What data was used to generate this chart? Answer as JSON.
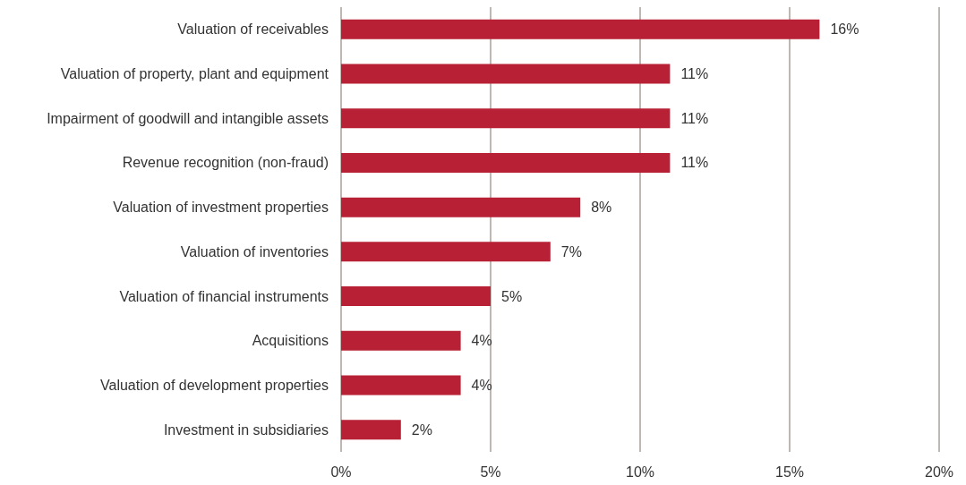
{
  "chart_data": {
    "type": "bar",
    "orientation": "horizontal",
    "categories": [
      "Valuation of receivables",
      "Valuation of property, plant and equipment",
      "Impairment of goodwill and intangible assets",
      "Revenue recognition (non-fraud)",
      "Valuation of investment properties",
      "Valuation of inventories",
      "Valuation of financial instruments",
      "Acquisitions",
      "Valuation of development properties",
      "Investment in subsidiaries"
    ],
    "values": [
      16,
      11,
      11,
      11,
      8,
      7,
      5,
      4,
      4,
      2
    ],
    "value_labels": [
      "16%",
      "11%",
      "11%",
      "11%",
      "8%",
      "7%",
      "5%",
      "4%",
      "4%",
      "2%"
    ],
    "color": "#b72035",
    "xlim": [
      0,
      20
    ],
    "xticks": [
      {
        "value": 0,
        "label": "0%"
      },
      {
        "value": 5,
        "label": "5%"
      },
      {
        "value": 10,
        "label": "10%"
      },
      {
        "value": 15,
        "label": "15%"
      },
      {
        "value": 20,
        "label": "20%"
      }
    ],
    "grid": "x"
  }
}
